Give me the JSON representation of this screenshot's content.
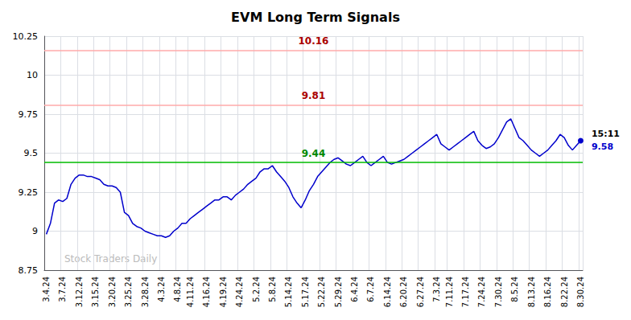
{
  "chart_data": {
    "type": "line",
    "title": "EVM Long Term Signals",
    "categories": [
      "3.4.24",
      null,
      null,
      null,
      "3.7.24",
      null,
      null,
      null,
      "3.12.24",
      null,
      null,
      null,
      "3.15.24",
      null,
      null,
      null,
      "3.20.24",
      null,
      null,
      null,
      "3.25.24",
      null,
      null,
      null,
      "3.28.24",
      null,
      null,
      null,
      "4.3.24",
      null,
      null,
      null,
      "4.8.24",
      null,
      null,
      "4.11.24",
      null,
      null,
      null,
      "4.16.24",
      null,
      null,
      null,
      "4.19.24",
      null,
      null,
      null,
      "4.24.24",
      null,
      null,
      null,
      "5.2.24",
      null,
      null,
      null,
      "5.8.24",
      null,
      null,
      null,
      "5.14.24",
      null,
      null,
      null,
      "5.17.24",
      null,
      null,
      null,
      "5.22.24",
      null,
      null,
      null,
      "5.29.24",
      null,
      null,
      null,
      "6.4.24",
      null,
      null,
      null,
      "6.7.24",
      null,
      null,
      null,
      "6.14.24",
      null,
      null,
      null,
      "6.20.24",
      null,
      null,
      null,
      "6.27.24",
      null,
      null,
      null,
      "7.3.24",
      null,
      null,
      "7.11.24",
      null,
      null,
      null,
      "7.17.24",
      null,
      null,
      null,
      "7.24.24",
      null,
      null,
      null,
      "7.30.24",
      null,
      null,
      null,
      "8.5.24",
      null,
      null,
      null,
      "8.13.24",
      null,
      null,
      null,
      "8.16.24",
      null,
      null,
      null,
      "8.22.24",
      null,
      null,
      null,
      "8.30.24"
    ],
    "values": [
      8.98,
      9.05,
      9.18,
      9.2,
      9.19,
      9.21,
      9.3,
      9.34,
      9.36,
      9.36,
      9.35,
      9.35,
      9.34,
      9.33,
      9.3,
      9.29,
      9.29,
      9.28,
      9.25,
      9.12,
      9.1,
      9.05,
      9.03,
      9.02,
      9.0,
      8.99,
      8.98,
      8.97,
      8.97,
      8.96,
      8.97,
      9.0,
      9.02,
      9.05,
      9.05,
      9.08,
      9.1,
      9.12,
      9.14,
      9.16,
      9.18,
      9.2,
      9.2,
      9.22,
      9.22,
      9.2,
      9.23,
      9.25,
      9.27,
      9.3,
      9.32,
      9.34,
      9.38,
      9.4,
      9.4,
      9.42,
      9.38,
      9.35,
      9.32,
      9.28,
      9.22,
      9.18,
      9.15,
      9.2,
      9.26,
      9.3,
      9.35,
      9.38,
      9.41,
      9.44,
      9.46,
      9.47,
      9.45,
      9.43,
      9.42,
      9.44,
      9.46,
      9.48,
      9.44,
      9.42,
      9.44,
      9.46,
      9.48,
      9.44,
      9.43,
      9.44,
      9.45,
      9.46,
      9.48,
      9.5,
      9.52,
      9.54,
      9.56,
      9.58,
      9.6,
      9.62,
      9.56,
      9.54,
      9.52,
      9.54,
      9.56,
      9.58,
      9.6,
      9.62,
      9.64,
      9.58,
      9.55,
      9.53,
      9.54,
      9.56,
      9.6,
      9.65,
      9.7,
      9.72,
      9.66,
      9.6,
      9.58,
      9.55,
      9.52,
      9.5,
      9.48,
      9.5,
      9.52,
      9.55,
      9.58,
      9.62,
      9.6,
      9.55,
      9.52,
      9.55,
      9.58
    ],
    "color": "#0000cc",
    "ylim": [
      8.75,
      10.25
    ],
    "yticks": [
      8.75,
      9,
      9.25,
      9.5,
      9.75,
      10,
      10.25
    ],
    "grid": true,
    "reference_lines": [
      {
        "value": 10.16,
        "label": "10.16",
        "color": "#ffaaaa",
        "label_color": "#aa0000"
      },
      {
        "value": 9.81,
        "label": "9.81",
        "color": "#ffaaaa",
        "label_color": "#aa0000"
      },
      {
        "value": 9.44,
        "label": "9.44",
        "color": "#00bb00",
        "label_color": "#008800"
      }
    ],
    "last_label": {
      "time": "15:11",
      "price": 9.58,
      "color": "#0000cc"
    },
    "watermark": "Stock Traders Daily",
    "watermark_color": "#bbbbbb"
  }
}
